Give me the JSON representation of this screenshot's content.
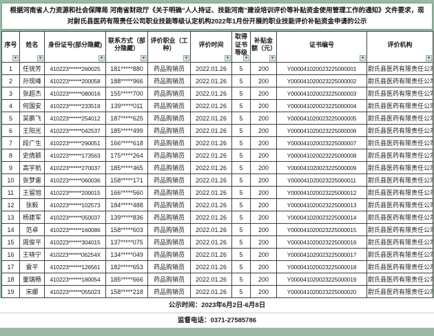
{
  "notice": {
    "text": "根据河南省人力资源和社会保障局 河南省财政厅《关于明确“人人持证、技能河南”建设培训评价等补贴资金使用管理工作的通知》文件要求，现对尉氏县医药有限责任公司职业技能等级认定机构2022年1月份开展的职业技能评价补贴资金申请的公示"
  },
  "table": {
    "column_keys": [
      "index",
      "name",
      "id-number",
      "phone",
      "occupation",
      "eval-date",
      "cert-level",
      "subsidy",
      "cert-number",
      "org"
    ],
    "columns": [
      "序号",
      "姓名",
      "身份证号(部分隐藏)",
      "联系方式（部分隐藏）",
      "评价职业（工种）",
      "评价时间",
      "取得证书等级",
      "补贴金额（元）",
      "证书编号",
      "评价机构"
    ],
    "filter_icon": "▾",
    "rows": [
      [
        "1",
        "任锐芳",
        "410223******260025",
        "181*****880",
        "药品购销员",
        "2022.01.26",
        "5",
        "200",
        "Y000041020023225000001",
        "尉氏县医药有限责任公司"
      ],
      [
        "2",
        "孙现峰",
        "410223******200058",
        "188*****966",
        "药品购销员",
        "2022.01.26",
        "5",
        "200",
        "Y000041020023225000002",
        "尉氏县医药有限责任公司"
      ],
      [
        "3",
        "张超杰",
        "410223******080016",
        "155*****700",
        "药品购销员",
        "2022.01.26",
        "5",
        "200",
        "Y000041020023225000003",
        "尉氏县医药有限责任公司"
      ],
      [
        "4",
        "何国安",
        "410223******233519",
        "139*****011",
        "药品购销员",
        "2022.01.26",
        "5",
        "200",
        "Y000041020023225000004",
        "尉氏县医药有限责任公司"
      ],
      [
        "5",
        "吴鹏飞",
        "410223******254012",
        "187*****625",
        "药品购销员",
        "2022.01.26",
        "5",
        "200",
        "Y000041020023225000005",
        "尉氏县医药有限责任公司"
      ],
      [
        "6",
        "王阳光",
        "410223******042537",
        "185*****499",
        "药品购销员",
        "2022.01.26",
        "5",
        "200",
        "Y000041020023225000006",
        "尉氏县医药有限责任公司"
      ],
      [
        "7",
        "段广生",
        "410223******290051",
        "166*****618",
        "药品购销员",
        "2022.01.26",
        "5",
        "200",
        "Y000041020023225000007",
        "尉氏县医药有限责任公司"
      ],
      [
        "8",
        "史倩颖",
        "410223******173563",
        "175*****264",
        "药品购销员",
        "2022.01.26",
        "5",
        "200",
        "Y000041020023225000008",
        "尉氏县医药有限责任公司"
      ],
      [
        "9",
        "高宇航",
        "410223******270037",
        "185*****465",
        "药品购销员",
        "2022.01.26",
        "5",
        "200",
        "Y000041020023225000009",
        "尉氏县医药有限责任公司"
      ],
      [
        "10",
        "张梦雷",
        "410223******060036",
        "158*****171",
        "药品购销员",
        "2022.01.26",
        "5",
        "200",
        "Y000041020023225000011",
        "尉氏县医药有限责任公司"
      ],
      [
        "11",
        "王留旭",
        "410223******200015",
        "166*****560",
        "药品购销员",
        "2022.01.26",
        "5",
        "200",
        "Y000041020023225000012",
        "尉氏县医药有限责任公司"
      ],
      [
        "12",
        "张毅",
        "410223******102573",
        "184*****488",
        "药品购销员",
        "2022.01.26",
        "5",
        "200",
        "Y000041020023225000013",
        "尉氏县医药有限责任公司"
      ],
      [
        "13",
        "杨建军",
        "410223******050037",
        "139*****836",
        "药品购销员",
        "2022.01.26",
        "5",
        "200",
        "Y000041020023225000014",
        "尉氏县医药有限责任公司"
      ],
      [
        "14",
        "范卓",
        "410223******160086",
        "158*****603",
        "药品购销员",
        "2022.01.26",
        "5",
        "200",
        "Y000041020023225000015",
        "尉氏县医药有限责任公司"
      ],
      [
        "15",
        "周俊平",
        "410223******304015",
        "137*****075",
        "药品购销员",
        "2022.01.26",
        "5",
        "200",
        "Y000041020023225000016",
        "尉氏县医药有限责任公司"
      ],
      [
        "16",
        "王晓宁",
        "410223******06254X",
        "134*****049",
        "药品购销员",
        "2022.01.26",
        "5",
        "200",
        "Y000041020023225000017",
        "尉氏县医药有限责任公司"
      ],
      [
        "17",
        "雷平",
        "410223******126561",
        "182*****653",
        "药品购销员",
        "2022.01.26",
        "5",
        "200",
        "Y000041020023225000018",
        "尉氏县医药有限责任公司"
      ],
      [
        "18",
        "董璃畅",
        "410223******180054",
        "185*****666",
        "药品购销员",
        "2022.01.26",
        "5",
        "200",
        "Y000041020023225000019",
        "尉氏县医药有限责任公司"
      ],
      [
        "19",
        "宋娜",
        "410223******055023",
        "158*****218",
        "药品购销员",
        "2022.01.26",
        "5",
        "200",
        "Y000041020023225000020",
        "尉氏县医药有限责任公司"
      ]
    ]
  },
  "footer": {
    "publicity_time": "公示时间：2023年6月2日-6月8日",
    "supervision_phone": "监督电话：0371-27585786"
  },
  "colors": {
    "page_background": "#9bb8a6",
    "table_border": "#3d3d3d",
    "notice_border": "#6f9f85",
    "filter_button_bg": "#d9e8dc",
    "filter_button_border": "#8fae99",
    "text": "#1a1a1a"
  }
}
